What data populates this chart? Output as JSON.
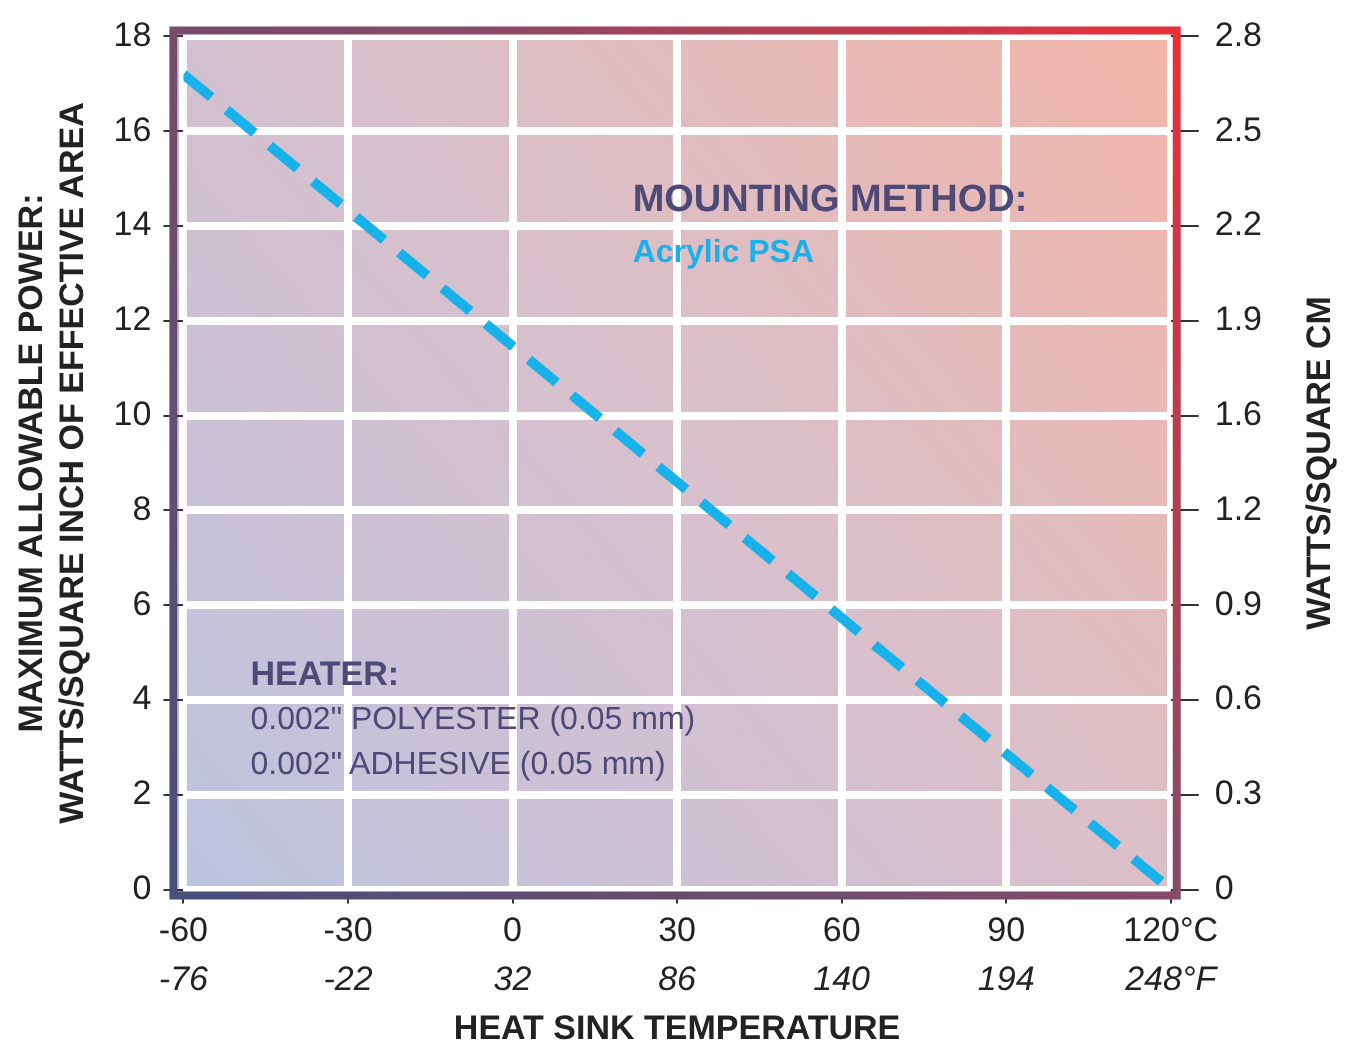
{
  "chart_data": {
    "type": "line",
    "xlabel": "HEAT SINK TEMPERATURE",
    "ylabel": "MAXIMUM ALLOWABLE POWER:\nWATTS/SQUARE INCH OF EFFECTIVE AREA",
    "y2label": "WATTS/SQUARE CM",
    "x": [
      -60,
      120
    ],
    "series": [
      {
        "name": "Acrylic PSA",
        "color": "#18b2ea",
        "values": [
          17.2,
          0
        ]
      }
    ],
    "xlim": [
      -60,
      120
    ],
    "xticks": [
      -60,
      -30,
      0,
      30,
      60,
      90,
      {
        "value": 120,
        "label": "120°C"
      }
    ],
    "x2lim": [
      -76,
      248
    ],
    "x2ticks": [
      -76,
      -22,
      32,
      86,
      140,
      194,
      {
        "value": 248,
        "label": "248°F"
      }
    ],
    "ylim": [
      0,
      18
    ],
    "yticks": [
      0,
      2,
      4,
      6,
      8,
      10,
      12,
      14,
      16,
      18
    ],
    "y2lim": [
      0,
      2.79
    ],
    "y2ticks": [
      0,
      {
        "value": 0.31,
        "label": "0.3"
      },
      {
        "value": 0.62,
        "label": "0.6"
      },
      {
        "value": 0.93,
        "label": "0.9"
      },
      {
        "value": 1.24,
        "label": "1.2"
      },
      {
        "value": 1.55,
        "label": "1.6"
      },
      {
        "value": 1.86,
        "label": "1.9"
      },
      {
        "value": 2.17,
        "label": "2.2"
      },
      {
        "value": 2.48,
        "label": "2.5"
      },
      {
        "value": 2.79,
        "label": "2.8"
      }
    ],
    "annotations": [
      "MOUNTING METHOD:",
      "HEATER:",
      "0.002\" POLYESTER (0.05 mm)",
      "0.002\" ADHESIVE (0.05 mm)"
    ],
    "grid": true,
    "legend": false,
    "marker": "none",
    "line_style": "dashed"
  }
}
